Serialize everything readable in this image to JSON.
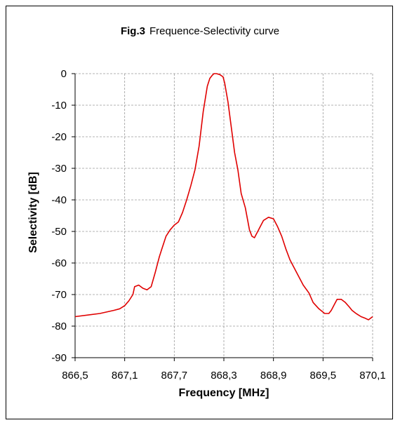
{
  "chart_data": {
    "type": "line",
    "title_prefix": "Fig.3",
    "title": "Frequence-Selectivity curve",
    "xlabel": "Frequency [MHz]",
    "ylabel": "Selectivity [dB]",
    "xlim": [
      866.5,
      870.1
    ],
    "ylim": [
      -90,
      0
    ],
    "xticks": [
      866.5,
      867.1,
      867.7,
      868.3,
      868.9,
      869.5,
      870.1
    ],
    "xtick_labels": [
      "866,5",
      "867,1",
      "867,7",
      "868,3",
      "868,9",
      "869,5",
      "870,1"
    ],
    "yticks": [
      0,
      -10,
      -20,
      -30,
      -40,
      -50,
      -60,
      -70,
      -80,
      -90
    ],
    "ytick_labels": [
      "0",
      "-10",
      "-20",
      "-30",
      "-40",
      "-50",
      "-60",
      "-70",
      "-80",
      "-90"
    ],
    "grid": true,
    "line_color": "#e00000",
    "series": [
      {
        "x": [
          866.5,
          866.8,
          866.97,
          867.04,
          867.1,
          867.15,
          867.2,
          867.22,
          867.27,
          867.32,
          867.37,
          867.42,
          867.47,
          867.52,
          867.55,
          867.6,
          867.65,
          867.7,
          867.75,
          867.8,
          867.85,
          867.9,
          867.95,
          868.0,
          868.05,
          868.1,
          868.13,
          868.16,
          868.18,
          868.21,
          868.25,
          868.29,
          868.31,
          868.35,
          868.39,
          868.43,
          868.47,
          868.51,
          868.56,
          868.61,
          868.64,
          868.67,
          868.69,
          868.71,
          868.73,
          868.78,
          868.84,
          868.9,
          868.95,
          869.0,
          869.05,
          869.1,
          869.15,
          869.2,
          869.26,
          869.33,
          869.38,
          869.45,
          869.52,
          869.57,
          869.6,
          869.64,
          869.67,
          869.72,
          869.77,
          869.82,
          869.85,
          869.9,
          869.96,
          870.01,
          870.05,
          870.1
        ],
        "y": [
          -77,
          -76,
          -75,
          -74.5,
          -73.5,
          -72,
          -70,
          -67.5,
          -67,
          -68,
          -68.5,
          -67.5,
          -63,
          -58,
          -55.5,
          -51.5,
          -49.5,
          -48,
          -47,
          -44,
          -40,
          -35.5,
          -30.5,
          -23,
          -12,
          -4,
          -1.5,
          -0.5,
          0,
          0,
          -0.3,
          -1,
          -3,
          -9,
          -17,
          -25,
          -30.5,
          -38,
          -42.5,
          -49.5,
          -51.5,
          -52,
          -51,
          -50,
          -49,
          -46.5,
          -45.5,
          -46,
          -48.5,
          -51.5,
          -55.5,
          -59,
          -61.5,
          -64,
          -67,
          -69.5,
          -72.5,
          -74.5,
          -76,
          -76,
          -75,
          -73,
          -71.5,
          -71.5,
          -72.5,
          -74,
          -75,
          -76,
          -77,
          -77.5,
          -78,
          -77
        ]
      }
    ]
  }
}
